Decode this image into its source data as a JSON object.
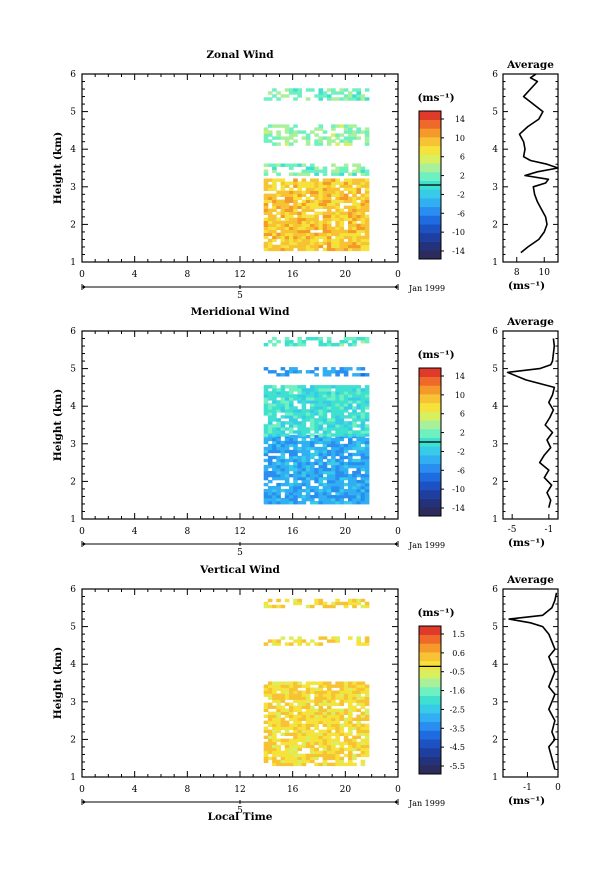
{
  "chart_data": [
    {
      "type": "heatmap",
      "title": "Zonal Wind",
      "ylabel": "Height (km)",
      "ylim": [
        1,
        6
      ],
      "yticks": [
        "1",
        "2",
        "3",
        "4",
        "5",
        "6"
      ],
      "xlim": [
        0,
        24
      ],
      "xticks": [
        "0",
        "4",
        "8",
        "12",
        "16",
        "20",
        "0"
      ],
      "day_label": "5",
      "date_label": "Jan 1999",
      "unit_label": "(ms⁻¹)",
      "colorbar": {
        "range": [
          -16,
          16
        ],
        "ticks": [
          "14",
          "10",
          "6",
          "2",
          "-2",
          "-6",
          "-10",
          "-14"
        ]
      },
      "data_extent": {
        "x": [
          13.8,
          21.8
        ],
        "y": [
          1.3,
          5.6
        ]
      },
      "bands": [
        {
          "y": [
            1.3,
            3.2
          ],
          "value": 9
        },
        {
          "y": [
            3.3,
            3.6
          ],
          "value": 2
        },
        {
          "y": [
            4.1,
            4.6
          ],
          "value": 3
        },
        {
          "y": [
            5.3,
            5.6
          ],
          "value": 2
        }
      ],
      "average": {
        "title": "Average",
        "xlim": [
          7,
          11
        ],
        "xticks": [
          "8",
          "10"
        ],
        "xlabel": "(ms⁻¹)",
        "height": [
          1.25,
          1.4,
          1.6,
          1.8,
          2.0,
          2.2,
          2.4,
          2.6,
          2.8,
          3.0,
          3.1,
          3.2,
          3.3,
          3.4,
          3.5,
          3.6,
          3.7,
          3.8,
          4.0,
          4.2,
          4.4,
          4.6,
          4.8,
          5.0,
          5.2,
          5.4,
          5.6,
          5.8,
          5.9,
          6.0
        ],
        "value": [
          8.3,
          8.8,
          9.6,
          10.0,
          10.2,
          10.1,
          9.8,
          9.5,
          9.3,
          9.2,
          10.1,
          10.3,
          8.6,
          9.5,
          11.0,
          10.2,
          9.0,
          8.5,
          8.6,
          8.5,
          8.2,
          8.8,
          9.6,
          9.9,
          9.2,
          8.5,
          9.0,
          9.5,
          9.0,
          9.4
        ]
      }
    },
    {
      "type": "heatmap",
      "title": "Meridional Wind",
      "ylabel": "Height (km)",
      "ylim": [
        1,
        6
      ],
      "yticks": [
        "1",
        "2",
        "3",
        "4",
        "5",
        "6"
      ],
      "xlim": [
        0,
        24
      ],
      "xticks": [
        "0",
        "4",
        "8",
        "12",
        "16",
        "20",
        "0"
      ],
      "day_label": "5",
      "date_label": "Jan 1999",
      "unit_label": "(ms⁻¹)",
      "colorbar": {
        "range": [
          -16,
          16
        ],
        "ticks": [
          "14",
          "10",
          "6",
          "2",
          "-2",
          "-6",
          "-10",
          "-14"
        ]
      },
      "data_extent": {
        "x": [
          13.8,
          21.8
        ],
        "y": [
          1.4,
          5.8
        ]
      },
      "bands": [
        {
          "y": [
            1.4,
            3.2
          ],
          "value": -4
        },
        {
          "y": [
            3.2,
            4.5
          ],
          "value": 0
        },
        {
          "y": [
            4.8,
            5.0
          ],
          "value": -5
        },
        {
          "y": [
            5.6,
            5.8
          ],
          "value": 1
        }
      ],
      "average": {
        "title": "Average",
        "xlim": [
          -6,
          0
        ],
        "xticks": [
          "-5",
          "-1"
        ],
        "xlabel": "(ms⁻¹)",
        "height": [
          1.3,
          1.5,
          1.7,
          1.9,
          2.1,
          2.3,
          2.5,
          2.7,
          2.9,
          3.1,
          3.3,
          3.5,
          3.7,
          3.9,
          4.1,
          4.3,
          4.5,
          4.7,
          4.9,
          5.0,
          5.1,
          5.2,
          5.4,
          5.6,
          5.8
        ],
        "value": [
          -1.0,
          -0.8,
          -1.2,
          -0.7,
          -1.5,
          -1.0,
          -2.0,
          -1.5,
          -0.8,
          -1.2,
          -0.6,
          -1.4,
          -0.9,
          -0.5,
          -1.0,
          -0.6,
          -0.4,
          -3.5,
          -5.5,
          -2.0,
          -0.8,
          -0.6,
          -0.5,
          -0.4,
          -0.5
        ]
      }
    },
    {
      "type": "heatmap",
      "title": "Vertical Wind",
      "ylabel": "Height (km)",
      "ylim": [
        1,
        6
      ],
      "yticks": [
        "1",
        "2",
        "3",
        "4",
        "5",
        "6"
      ],
      "xlim": [
        0,
        24
      ],
      "xticks": [
        "0",
        "4",
        "8",
        "12",
        "16",
        "20",
        "0"
      ],
      "xlabel": "Local Time",
      "day_label": "5",
      "date_label": "Jan 1999",
      "unit_label": "(ms⁻¹)",
      "colorbar": {
        "range": [
          -6.4,
          2.4
        ],
        "ticks": [
          "1.5",
          "0.6",
          "-0.5",
          "-1.6",
          "-2.5",
          "-3.5",
          "-4.5",
          "-5.5"
        ]
      },
      "data_extent": {
        "x": [
          13.8,
          21.8
        ],
        "y": [
          1.3,
          5.7
        ]
      },
      "bands": [
        {
          "y": [
            1.3,
            3.5
          ],
          "value": 0.2
        },
        {
          "y": [
            4.5,
            4.7
          ],
          "value": 0.2
        },
        {
          "y": [
            5.5,
            5.7
          ],
          "value": 0.2
        }
      ],
      "average": {
        "title": "Average",
        "xlim": [
          -1.8,
          0
        ],
        "xticks": [
          "-1",
          "0"
        ],
        "xlabel": "(ms⁻¹)",
        "height": [
          1.2,
          1.5,
          1.8,
          2.0,
          2.2,
          2.5,
          2.8,
          3.0,
          3.2,
          3.4,
          3.6,
          3.8,
          4.0,
          4.2,
          4.4,
          4.6,
          4.8,
          5.0,
          5.1,
          5.2,
          5.3,
          5.5,
          5.7,
          5.9
        ],
        "value": [
          -0.1,
          -0.2,
          -0.3,
          -0.1,
          -0.2,
          -0.1,
          -0.3,
          -0.2,
          -0.1,
          -0.3,
          -0.2,
          -0.1,
          -0.2,
          -0.3,
          -0.1,
          -0.2,
          -0.3,
          -0.5,
          -0.9,
          -1.6,
          -0.5,
          -0.2,
          -0.1,
          -0.05
        ]
      }
    }
  ]
}
